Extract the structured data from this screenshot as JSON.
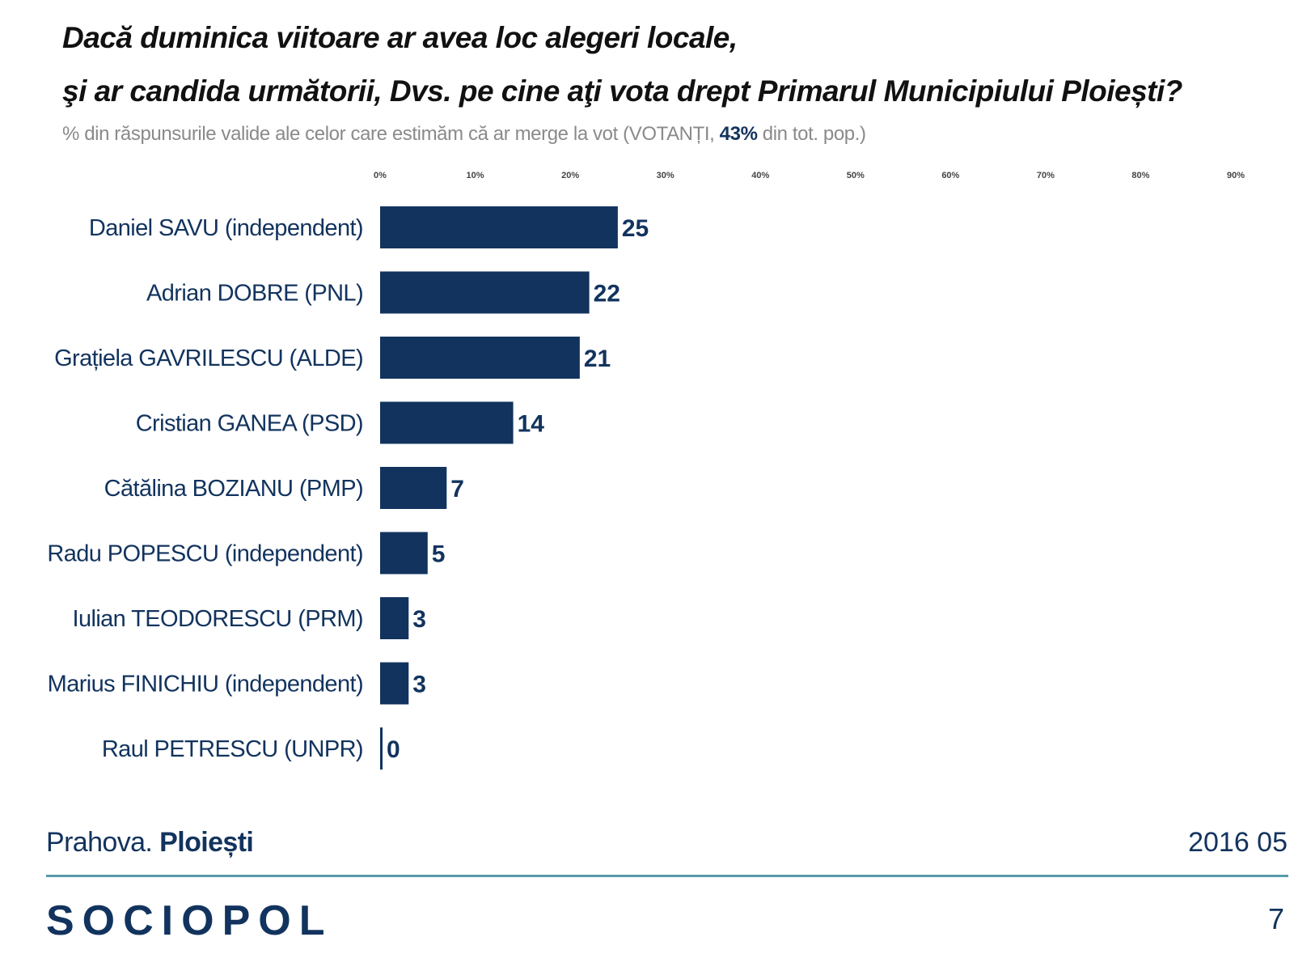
{
  "header": {
    "title_line1": "Dacă duminica viitoare ar avea loc alegeri locale,",
    "title_line2": "şi ar candida următorii, Dvs. pe cine aţi vota drept Primarul Municipiului Ploiești?",
    "subtitle_pre": "% din răspunsurile valide ale celor care estimăm că ar merge la vot (VOTANȚI, ",
    "subtitle_highlight": "43%",
    "subtitle_post": " din tot. pop.)"
  },
  "chart_data": {
    "type": "bar",
    "orientation": "horizontal",
    "categories": [
      "Daniel SAVU (independent)",
      "Adrian DOBRE (PNL)",
      "Grațiela GAVRILESCU (ALDE)",
      "Cristian GANEA (PSD)",
      "Cătălina BOZIANU (PMP)",
      "Radu POPESCU (independent)",
      "Iulian TEODORESCU (PRM)",
      "Marius FINICHIU (independent)",
      "Raul PETRESCU (UNPR)"
    ],
    "values": [
      25,
      22,
      21,
      14,
      7,
      5,
      3,
      3,
      0
    ],
    "x_ticks": [
      "0%",
      "10%",
      "20%",
      "30%",
      "40%",
      "50%",
      "60%",
      "70%",
      "80%",
      "90%"
    ],
    "xlim": [
      0,
      90
    ],
    "bar_color": "#12335e",
    "grid": false,
    "legend": false
  },
  "footer": {
    "region": "Prahova.",
    "city": "Ploiești",
    "date": "2016 05",
    "logo": "SOCIOPOL",
    "page": "7"
  },
  "colors": {
    "accent": "#12335e",
    "rule": "#5a9aa8",
    "subtitle": "#8a8a8a"
  }
}
